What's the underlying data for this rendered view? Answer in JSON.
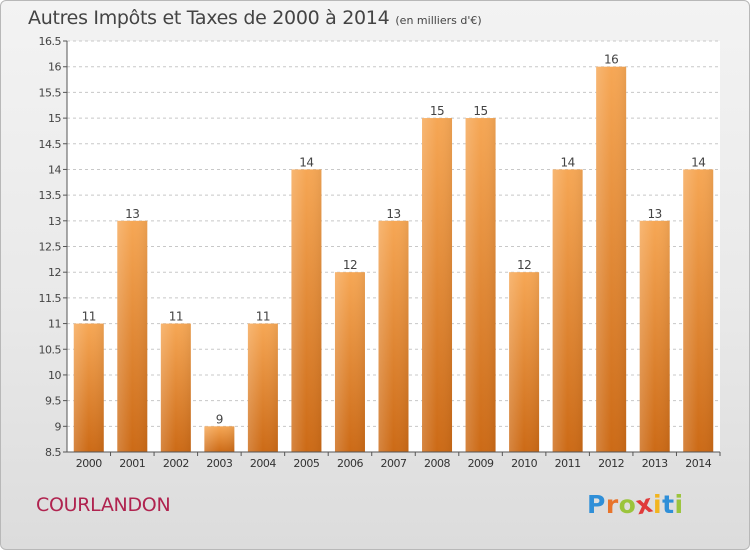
{
  "header": {
    "title": "Autres Impôts et Taxes de 2000 à 2014",
    "unit": "(en milliers d'€)"
  },
  "footer": {
    "commune": "COURLANDON"
  },
  "logo": {
    "letters": [
      "P",
      "r",
      "o",
      "x",
      "i",
      "t",
      "i"
    ],
    "colors": [
      "#2f8fd8",
      "#e8742b",
      "#9bc43c",
      "#e03a3a",
      "#f2b51f",
      "#2f8fd8",
      "#9bc43c"
    ]
  },
  "colors": {
    "bar_light": "#f6a755",
    "bar_dark": "#cc6a16",
    "axis": "#555555",
    "grid": "#c8c8c8",
    "plot_bg": "#ffffff"
  },
  "chart_data": {
    "type": "bar",
    "categories": [
      "2000",
      "2001",
      "2002",
      "2003",
      "2004",
      "2005",
      "2006",
      "2007",
      "2008",
      "2009",
      "2010",
      "2011",
      "2012",
      "2013",
      "2014"
    ],
    "values": [
      11,
      13,
      11,
      9,
      11,
      14,
      12,
      13,
      15,
      15,
      12,
      14,
      16,
      13,
      14
    ],
    "ylim": [
      8.5,
      16.5
    ],
    "yticks": [
      "8.5",
      "9",
      "9.5",
      "10",
      "10.5",
      "11",
      "11.5",
      "12",
      "12.5",
      "13",
      "13.5",
      "14",
      "14.5",
      "15",
      "15.5",
      "16",
      "16.5"
    ],
    "grid": true
  }
}
